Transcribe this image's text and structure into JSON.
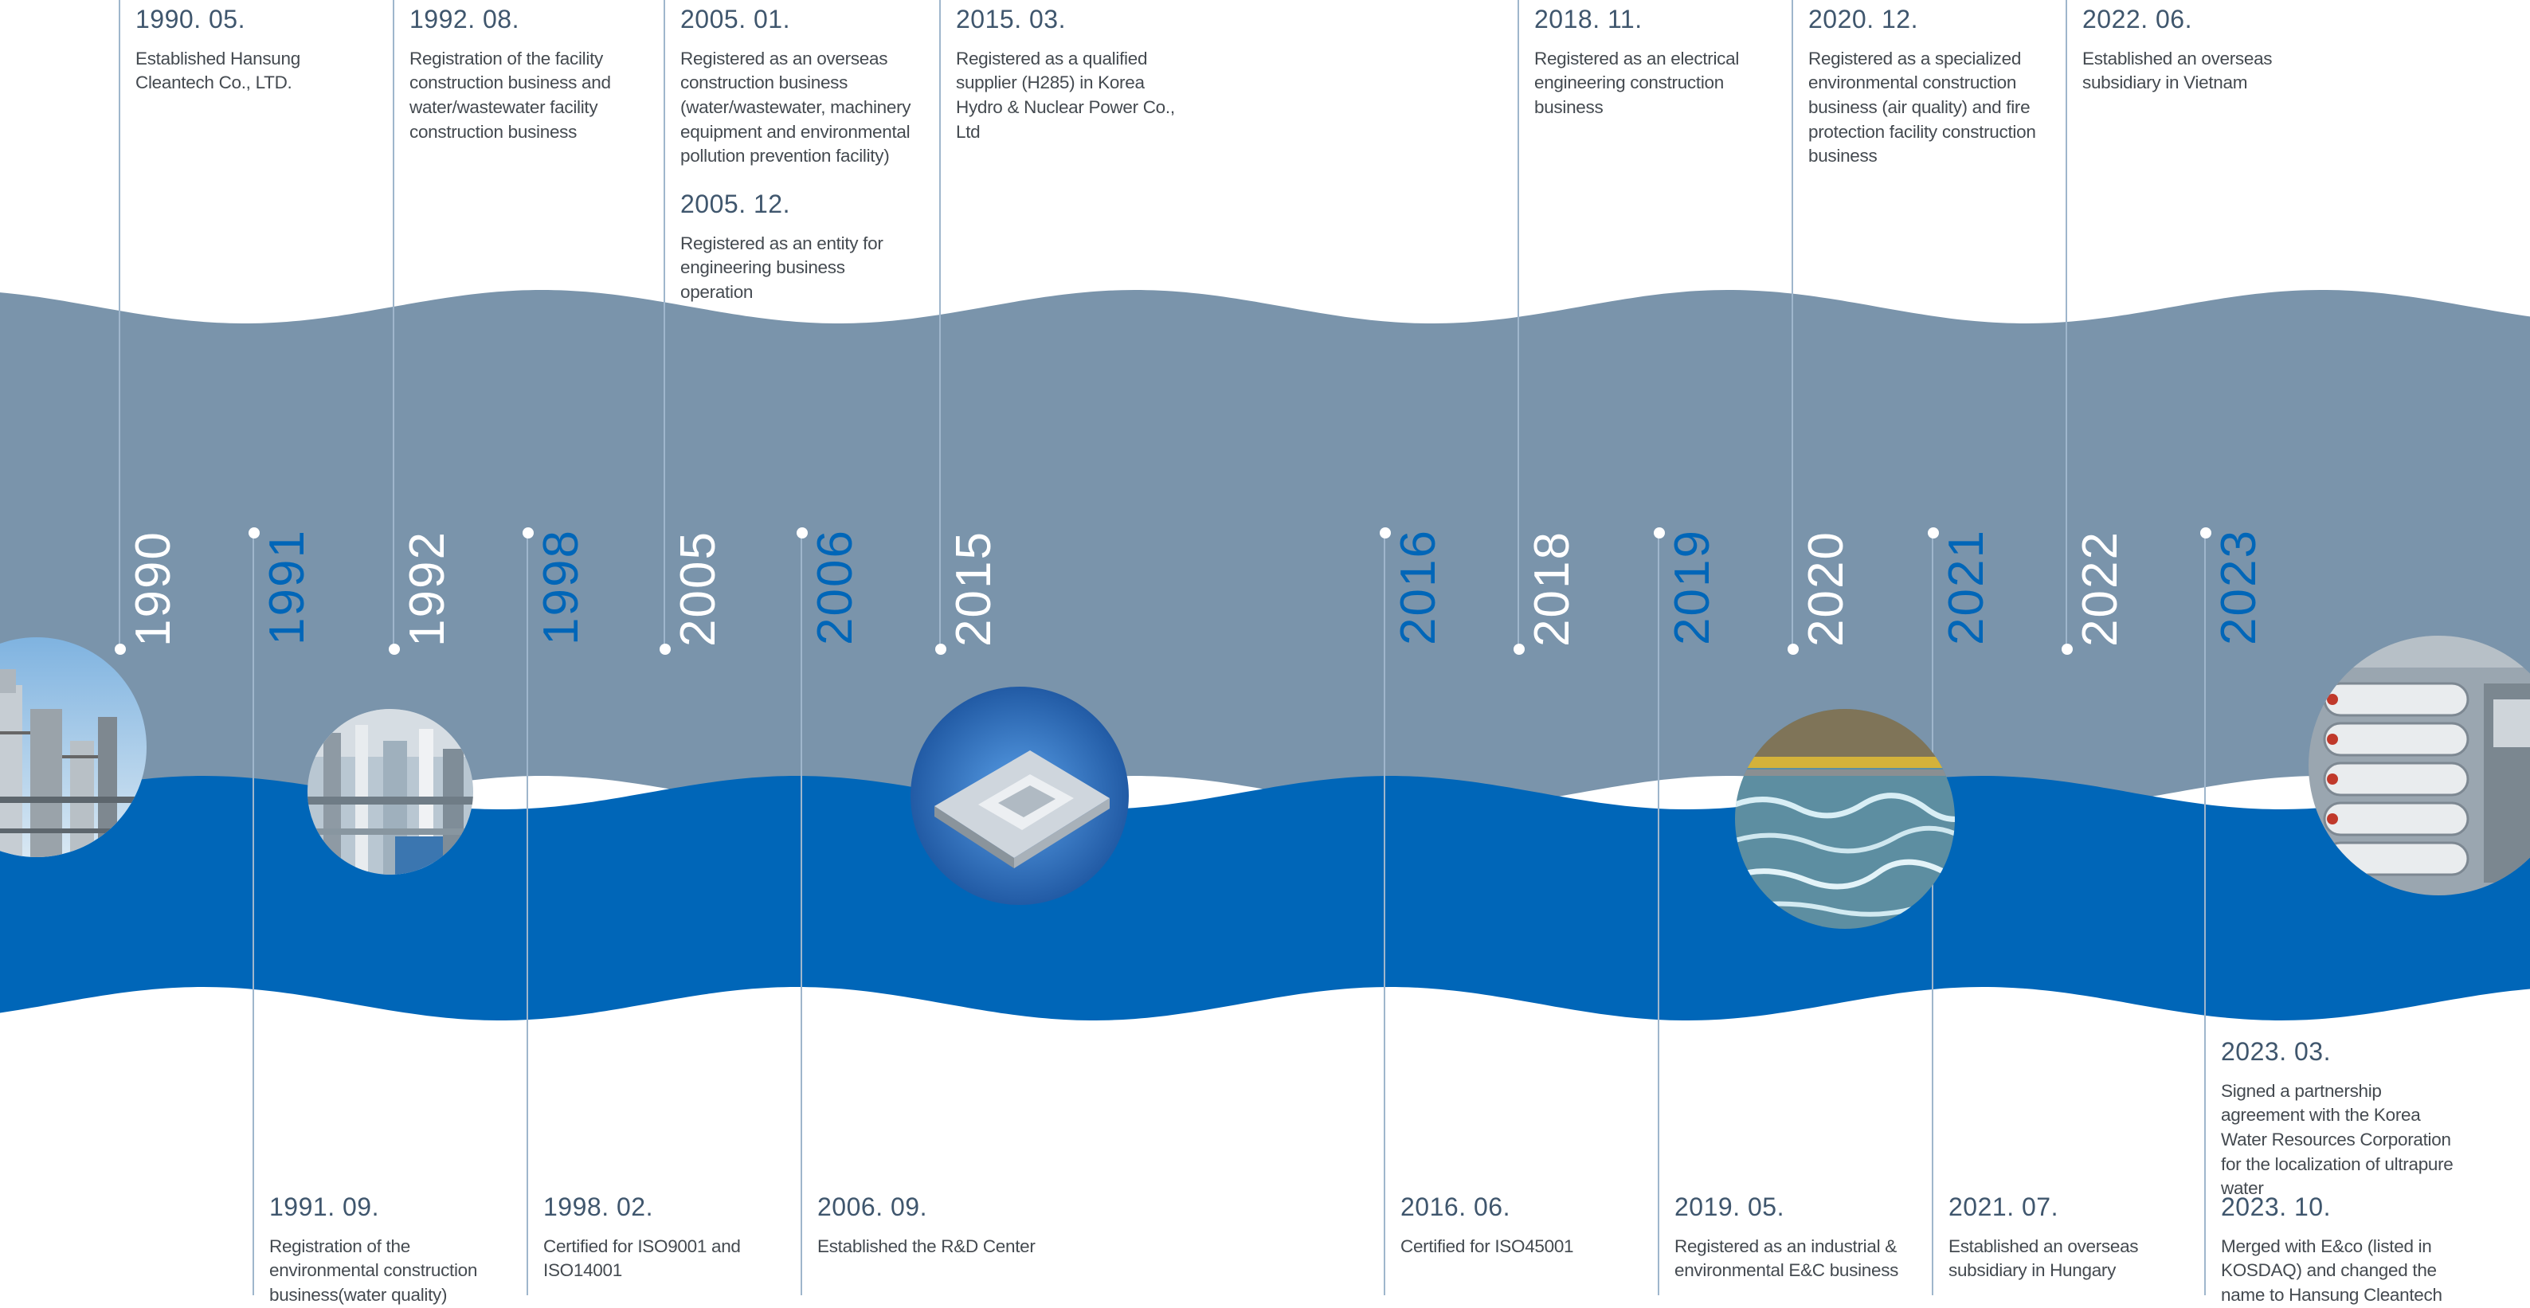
{
  "colors": {
    "upper_band": "#7a94ab",
    "lower_band": "#0066b8",
    "line": "#9fb6cc",
    "year_upper": "#ffffff",
    "year_lower": "#0066b8",
    "date_text": "#3f566d",
    "body_text": "#444a50"
  },
  "years": [
    {
      "label": "1990",
      "position": "top"
    },
    {
      "label": "1991",
      "position": "bottom"
    },
    {
      "label": "1992",
      "position": "top"
    },
    {
      "label": "1998",
      "position": "bottom"
    },
    {
      "label": "2005",
      "position": "top"
    },
    {
      "label": "2006",
      "position": "bottom"
    },
    {
      "label": "2015",
      "position": "top"
    },
    {
      "label": "2016",
      "position": "bottom"
    },
    {
      "label": "2018",
      "position": "top"
    },
    {
      "label": "2019",
      "position": "bottom"
    },
    {
      "label": "2020",
      "position": "top"
    },
    {
      "label": "2021",
      "position": "bottom"
    },
    {
      "label": "2022",
      "position": "top"
    },
    {
      "label": "2023",
      "position": "bottom"
    }
  ],
  "milestones": {
    "top": [
      {
        "year": "1990",
        "items": [
          {
            "date": "1990. 05.",
            "text": "Established Hansung Cleantech Co., LTD."
          }
        ]
      },
      {
        "year": "1992",
        "items": [
          {
            "date": "1992. 08.",
            "text": "Registration of the facility construction business and water/wastewater facility construction business"
          }
        ]
      },
      {
        "year": "2005",
        "items": [
          {
            "date": "2005. 01.",
            "text": "Registered as an overseas construction business (water/wastewater, machinery equipment and environmental pollution prevention facility)"
          },
          {
            "date": "2005. 12.",
            "text": "Registered as an entity for engineering business operation"
          }
        ]
      },
      {
        "year": "2015",
        "items": [
          {
            "date": "2015. 03.",
            "text": "Registered as a qualified supplier (H285) in Korea Hydro & Nuclear Power Co., Ltd"
          }
        ]
      },
      {
        "year": "2018",
        "items": [
          {
            "date": "2018. 11.",
            "text": "Registered as an electrical engineering construction business"
          }
        ]
      },
      {
        "year": "2020",
        "items": [
          {
            "date": "2020. 12.",
            "text": "Registered as a specialized environmental construction business (air quality) and fire protection facility construction business"
          }
        ]
      },
      {
        "year": "2022",
        "items": [
          {
            "date": "2022. 06.",
            "text": "Established an overseas subsidiary in Vietnam"
          }
        ]
      }
    ],
    "bottom": [
      {
        "year": "1991",
        "items": [
          {
            "date": "1991. 09.",
            "text": "Registration of  the environmental construction business(water quality)"
          }
        ]
      },
      {
        "year": "1998",
        "items": [
          {
            "date": "1998. 02.",
            "text": "Certified for ISO9001 and ISO14001"
          }
        ]
      },
      {
        "year": "2006",
        "items": [
          {
            "date": "2006. 09.",
            "text": "Established the R&D Center"
          }
        ]
      },
      {
        "year": "2016",
        "items": [
          {
            "date": "2016. 06.",
            "text": "Certified for ISO45001"
          }
        ]
      },
      {
        "year": "2019",
        "items": [
          {
            "date": "2019. 05.",
            "text": "Registered as an industrial & environmental E&C business"
          }
        ]
      },
      {
        "year": "2021",
        "items": [
          {
            "date": "2021. 07.",
            "text": "Established an overseas subsidiary in Hungary"
          }
        ]
      },
      {
        "year": "2023",
        "items": [
          {
            "date": "2023. 03.",
            "text": "Signed a partnership agreement with the Korea Water Resources Corporation for the localization of ultrapure water"
          },
          {
            "date": "2023. 10.",
            "text": "Merged with E&co (listed in KOSDAQ) and changed the name to Hansung Cleantech"
          }
        ]
      }
    ]
  },
  "photos": [
    {
      "name": "refinery-photo"
    },
    {
      "name": "plant-pipes-photo"
    },
    {
      "name": "cpu-chip-photo"
    },
    {
      "name": "water-treatment-photo"
    },
    {
      "name": "membrane-filters-photo"
    }
  ]
}
